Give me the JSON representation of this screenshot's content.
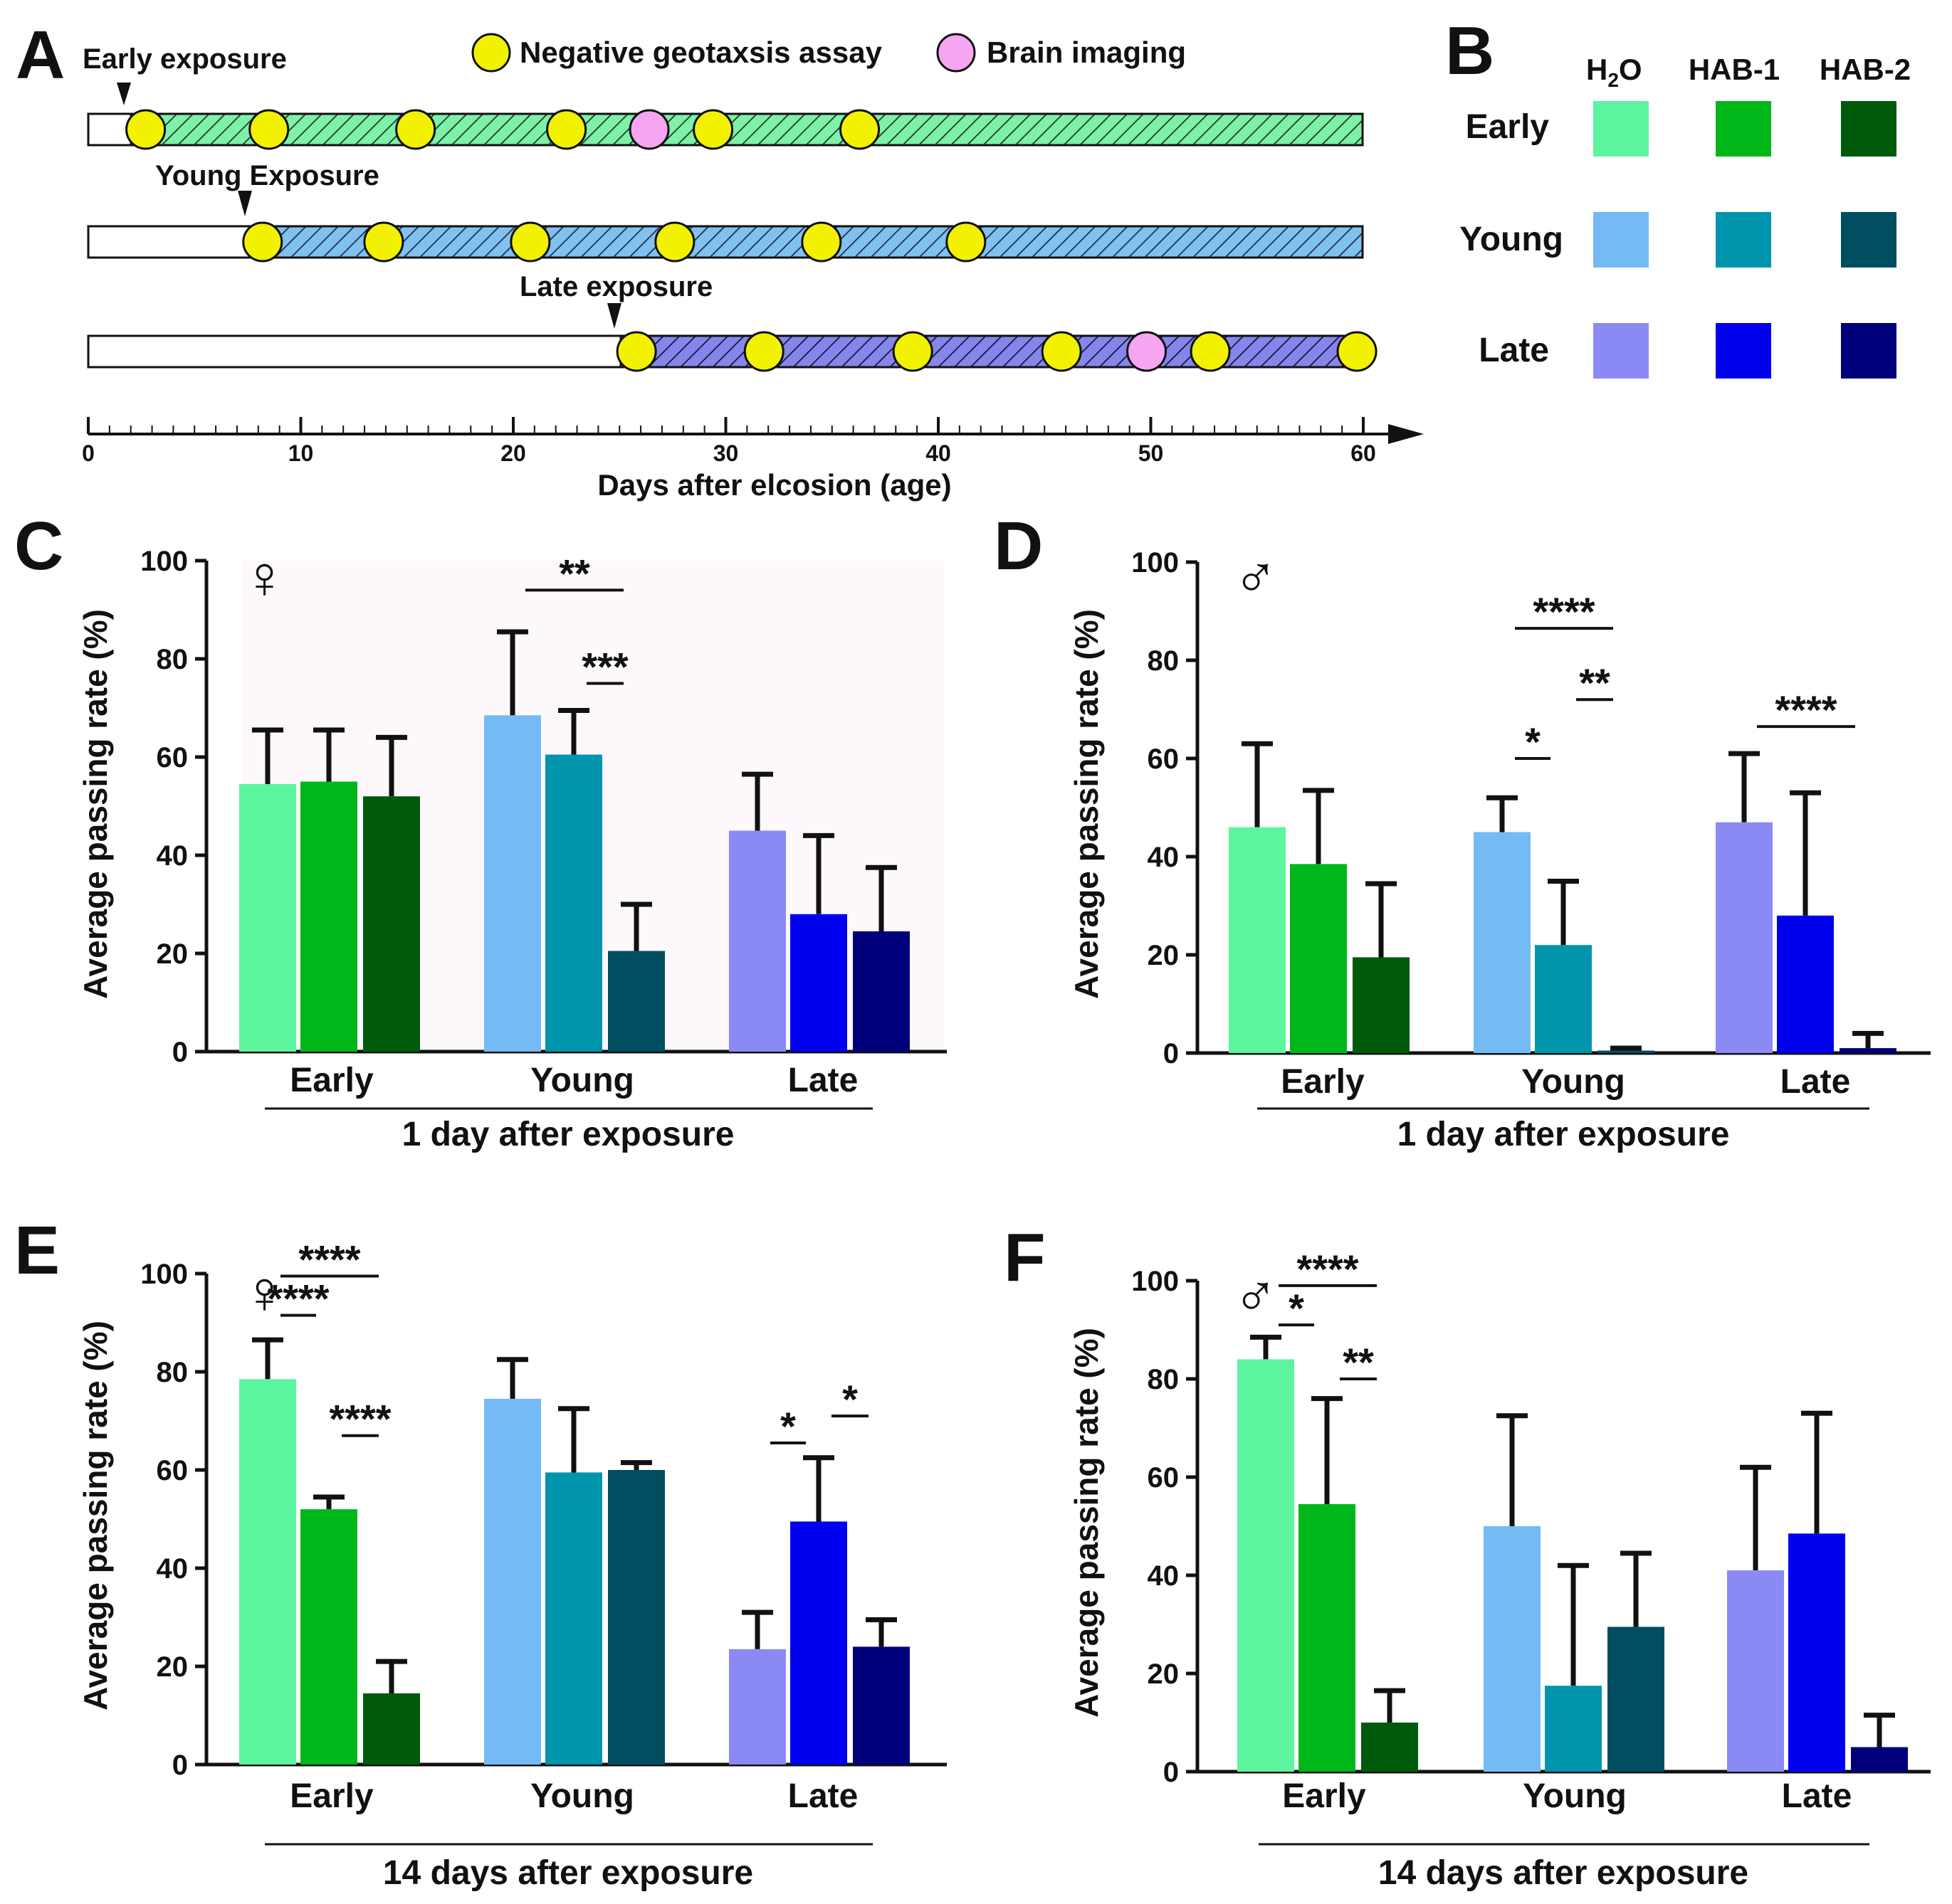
{
  "colors": {
    "early": [
      "#5cf59d",
      "#00b71a",
      "#005a0c"
    ],
    "young": [
      "#74bbf5",
      "#0095ad",
      "#004e60"
    ],
    "late": [
      "#8b8af4",
      "#0000f0",
      "#00007c"
    ],
    "assay_dot": "#f2f200",
    "brain_dot": "#f6a6f0",
    "early_bar_fill": "#7ff0a8",
    "young_bar_fill": "#82c0f0",
    "late_bar_fill": "#8686ea"
  },
  "panel_a": {
    "letter": "A",
    "legend_assay": "Negative geotaxsis assay",
    "legend_brain": "Brain imaging",
    "timelines": [
      {
        "id": "early",
        "label": "Early exposure",
        "start": 2,
        "assays": [
          2.7,
          8.5,
          15.4,
          22.5,
          29.4,
          36.3
        ],
        "brain": [
          26.4
        ]
      },
      {
        "id": "young",
        "label": "Young Exposure",
        "start": 8,
        "assays": [
          8.2,
          13.9,
          20.8,
          27.6,
          34.5,
          41.3
        ],
        "brain": []
      },
      {
        "id": "late",
        "label": "Late exposure",
        "start": 25,
        "assays": [
          25.8,
          31.8,
          38.8,
          45.8,
          52.8,
          59.7
        ],
        "brain": [
          49.8
        ]
      }
    ],
    "axis": {
      "min": 0,
      "max": 60,
      "ticks": [
        0,
        10,
        20,
        30,
        40,
        50,
        60
      ],
      "label": "Days after elcosion (age)"
    }
  },
  "panel_b": {
    "letter": "B",
    "columns": [
      "H",
      "HAB-1",
      "HAB-2"
    ],
    "h2o_sub": "2",
    "h2o_tail": "O",
    "rows": [
      "Early",
      "Young",
      "Late"
    ]
  },
  "chart_data": [
    {
      "panel": "C",
      "type": "bar",
      "sex_symbol": "♀",
      "ylabel": "Average passing rate (%)",
      "ylim": [
        0,
        100
      ],
      "yticks": [
        0,
        20,
        40,
        60,
        80,
        100
      ],
      "groups": [
        "Early",
        "Young",
        "Late"
      ],
      "series": [
        "H2O",
        "HAB-1",
        "HAB-2"
      ],
      "xlabel": "1 day after exposure",
      "values": [
        [
          54.5,
          55,
          52
        ],
        [
          68.5,
          60.5,
          20.5
        ],
        [
          45,
          28,
          24.5
        ]
      ],
      "errors": [
        [
          11,
          10.5,
          12
        ],
        [
          17,
          9,
          9.5
        ],
        [
          11.5,
          16,
          13
        ]
      ],
      "annotations": [
        {
          "g": 1,
          "from": 0,
          "to": 2,
          "level": 94,
          "text": "**"
        },
        {
          "g": 1,
          "from": 1,
          "to": 2,
          "level": 75,
          "text": "***"
        }
      ]
    },
    {
      "panel": "D",
      "type": "bar",
      "sex_symbol": "♂",
      "ylabel": "Average passing rate (%)",
      "ylim": [
        0,
        100
      ],
      "yticks": [
        0,
        20,
        40,
        60,
        80,
        100
      ],
      "groups": [
        "Early",
        "Young",
        "Late"
      ],
      "series": [
        "H2O",
        "HAB-1",
        "HAB-2"
      ],
      "xlabel": "1 day after exposure",
      "values": [
        [
          46,
          38.5,
          19.5
        ],
        [
          45,
          22,
          0.5
        ],
        [
          47,
          28,
          1
        ]
      ],
      "errors": [
        [
          17,
          15,
          15
        ],
        [
          7,
          13,
          0.5
        ],
        [
          14,
          25,
          3
        ]
      ],
      "annotations": [
        {
          "g": 1,
          "from": 0,
          "to": 2,
          "level": 86.5,
          "text": "****"
        },
        {
          "g": 1,
          "from": 1,
          "to": 2,
          "level": 72,
          "text": "**"
        },
        {
          "g": 1,
          "from": 0,
          "to": 1,
          "level": 60,
          "text": "*"
        },
        {
          "g": 2,
          "from": 0,
          "to": 2,
          "level": 66.5,
          "text": "****"
        }
      ]
    },
    {
      "panel": "E",
      "type": "bar",
      "sex_symbol": "♀",
      "ylabel": "Average passing rate (%)",
      "ylim": [
        0,
        100
      ],
      "yticks": [
        0,
        20,
        40,
        60,
        80,
        100
      ],
      "groups": [
        "Early",
        "Young",
        "Late"
      ],
      "series": [
        "H2O",
        "HAB-1",
        "HAB-2"
      ],
      "xlabel": "14 days after exposure",
      "values": [
        [
          78.5,
          52,
          14.5
        ],
        [
          74.5,
          59.5,
          60
        ],
        [
          23.5,
          49.5,
          24
        ]
      ],
      "errors": [
        [
          8,
          2.5,
          6.5
        ],
        [
          8,
          13,
          1.5
        ],
        [
          7.5,
          13,
          5.5
        ]
      ],
      "annotations": [
        {
          "g": 0,
          "from": 0,
          "to": 2,
          "level": 99.5,
          "text": "****"
        },
        {
          "g": 0,
          "from": 0,
          "to": 1,
          "level": 91.5,
          "text": "****"
        },
        {
          "g": 0,
          "from": 1,
          "to": 2,
          "level": 67,
          "text": "****"
        },
        {
          "g": 2,
          "from": 0,
          "to": 1,
          "level": 65.5,
          "text": "*"
        },
        {
          "g": 2,
          "from": 1,
          "to": 2,
          "level": 71,
          "text": "*"
        }
      ]
    },
    {
      "panel": "F",
      "type": "bar",
      "sex_symbol": "♂",
      "ylabel": "Average passing rate (%)",
      "ylim": [
        0,
        100
      ],
      "yticks": [
        0,
        20,
        40,
        60,
        80,
        100
      ],
      "groups": [
        "Early",
        "Young",
        "Late"
      ],
      "series": [
        "H2O",
        "HAB-1",
        "HAB-2"
      ],
      "xlabel": "14 days after exposure",
      "values": [
        [
          84,
          54.5,
          10
        ],
        [
          50,
          17.5,
          29.5
        ],
        [
          41,
          48.5,
          5
        ]
      ],
      "errors": [
        [
          4.5,
          21.5,
          6.5
        ],
        [
          22.5,
          24.5,
          15
        ],
        [
          21,
          24.5,
          6.5
        ]
      ],
      "annotations": [
        {
          "g": 0,
          "from": 0,
          "to": 2,
          "level": 99,
          "text": "****"
        },
        {
          "g": 0,
          "from": 0,
          "to": 1,
          "level": 91,
          "text": "*"
        },
        {
          "g": 0,
          "from": 1,
          "to": 2,
          "level": 80,
          "text": "**"
        }
      ]
    }
  ]
}
